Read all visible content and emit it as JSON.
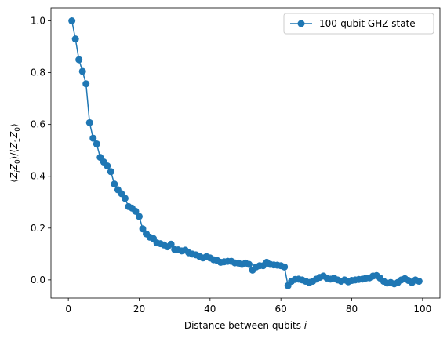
{
  "chart_data": {
    "type": "line",
    "xlabel": "Distance between qubits i",
    "ylabel": "⟨Z_i Z_0⟩/⟨Z_1 Z_0⟩",
    "xlim": [
      -4.9,
      104.9
    ],
    "ylim": [
      -0.07,
      1.05
    ],
    "xticks": [
      "0",
      "20",
      "40",
      "60",
      "80",
      "100"
    ],
    "yticks": [
      "0.0",
      "0.2",
      "0.4",
      "0.6",
      "0.8",
      "1.0"
    ],
    "legend_position": "top-right",
    "grid": false,
    "colors": {
      "series": "#1f77b4",
      "axes": "#000000"
    },
    "series": [
      {
        "name": "100-qubit GHZ state",
        "marker": "circle",
        "x": [
          1,
          2,
          3,
          4,
          5,
          6,
          7,
          8,
          9,
          10,
          11,
          12,
          13,
          14,
          15,
          16,
          17,
          18,
          19,
          20,
          21,
          22,
          23,
          24,
          25,
          26,
          27,
          28,
          29,
          30,
          31,
          32,
          33,
          34,
          35,
          36,
          37,
          38,
          39,
          40,
          41,
          42,
          43,
          44,
          45,
          46,
          47,
          48,
          49,
          50,
          51,
          52,
          53,
          54,
          55,
          56,
          57,
          58,
          59,
          60,
          61,
          62,
          63,
          64,
          65,
          66,
          67,
          68,
          69,
          70,
          71,
          72,
          73,
          74,
          75,
          76,
          77,
          78,
          79,
          80,
          81,
          82,
          83,
          84,
          85,
          86,
          87,
          88,
          89,
          90,
          91,
          92,
          93,
          94,
          95,
          96,
          97,
          98,
          99
        ],
        "values": [
          1.0,
          0.93,
          0.85,
          0.805,
          0.757,
          0.607,
          0.547,
          0.525,
          0.473,
          0.455,
          0.44,
          0.418,
          0.37,
          0.348,
          0.333,
          0.315,
          0.283,
          0.277,
          0.265,
          0.245,
          0.197,
          0.178,
          0.165,
          0.16,
          0.143,
          0.14,
          0.135,
          0.128,
          0.138,
          0.118,
          0.116,
          0.112,
          0.115,
          0.105,
          0.1,
          0.097,
          0.091,
          0.085,
          0.09,
          0.085,
          0.078,
          0.075,
          0.068,
          0.07,
          0.072,
          0.072,
          0.066,
          0.065,
          0.06,
          0.065,
          0.06,
          0.038,
          0.05,
          0.055,
          0.055,
          0.068,
          0.06,
          0.058,
          0.057,
          0.055,
          0.05,
          -0.022,
          -0.005,
          0.002,
          0.003,
          0.0,
          -0.005,
          -0.01,
          -0.005,
          0.003,
          0.01,
          0.015,
          0.007,
          0.003,
          0.007,
          0.0,
          -0.005,
          0.0,
          -0.007,
          -0.002,
          0.0,
          0.002,
          0.003,
          0.007,
          0.008,
          0.015,
          0.017,
          0.007,
          -0.005,
          -0.012,
          -0.01,
          -0.015,
          -0.01,
          0.0,
          0.005,
          -0.002,
          -0.01,
          0.0,
          -0.005
        ]
      }
    ]
  }
}
